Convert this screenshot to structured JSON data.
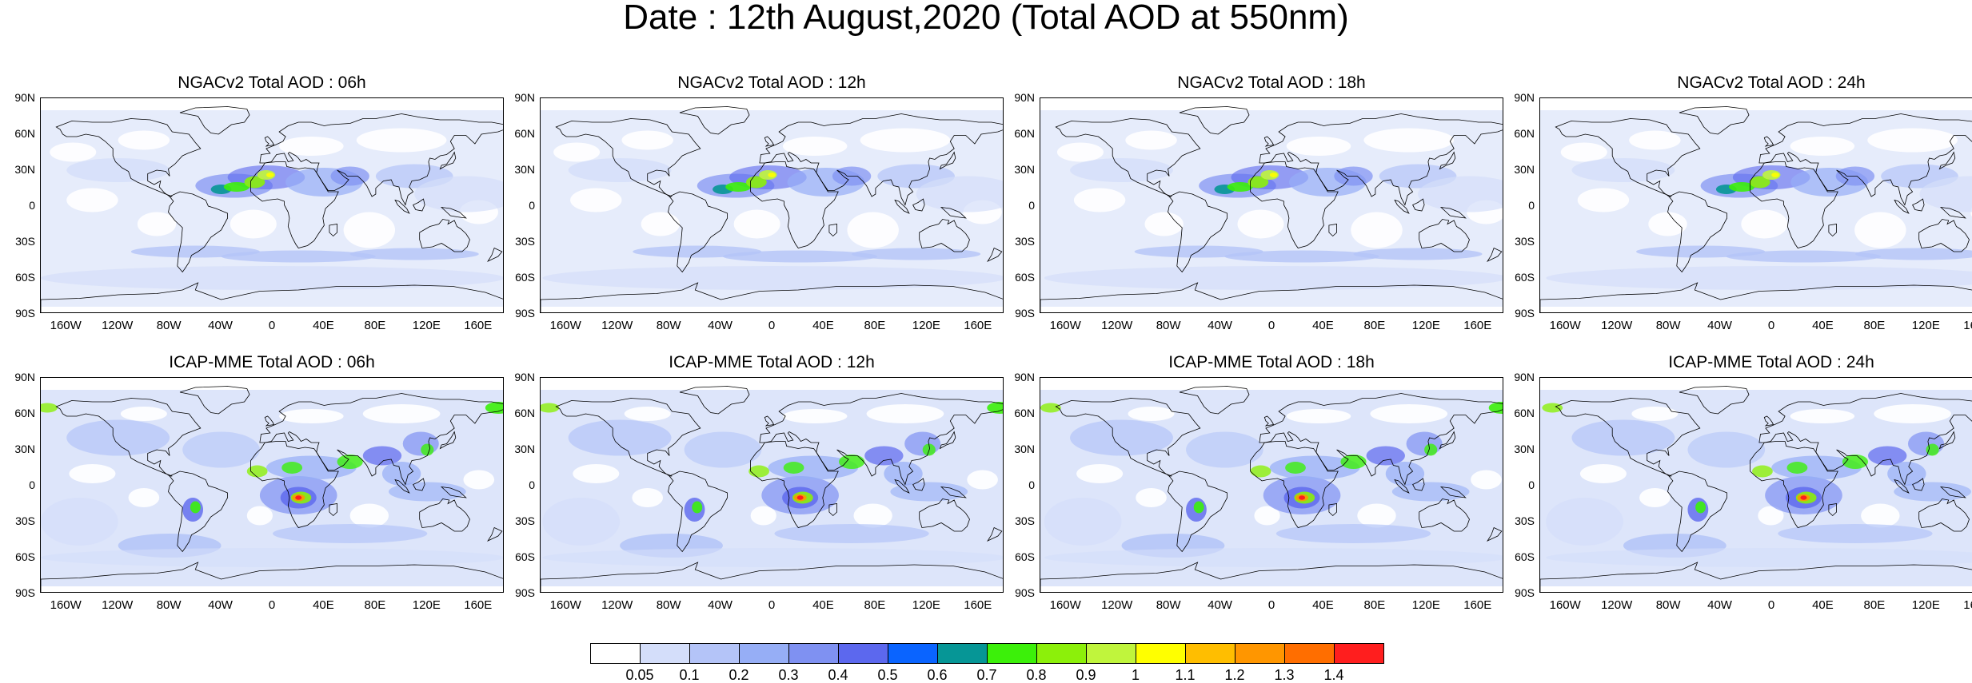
{
  "title": "Date : 12th August,2020 (Total AOD at 550nm)",
  "rows": [
    {
      "model": "NGACv2",
      "panels": [
        {
          "title": "NGACv2 Total AOD : 06h"
        },
        {
          "title": "NGACv2 Total AOD : 12h"
        },
        {
          "title": "NGACv2 Total AOD : 18h"
        },
        {
          "title": "NGACv2 Total AOD : 24h"
        }
      ]
    },
    {
      "model": "ICAP-MME",
      "panels": [
        {
          "title": "ICAP-MME Total AOD : 06h"
        },
        {
          "title": "ICAP-MME Total AOD : 12h"
        },
        {
          "title": "ICAP-MME Total AOD : 18h"
        },
        {
          "title": "ICAP-MME Total AOD : 24h"
        }
      ]
    }
  ],
  "lat_labels": [
    "90N",
    "60N",
    "30N",
    "0",
    "30S",
    "60S",
    "90S"
  ],
  "lon_labels": [
    "160W",
    "120W",
    "80W",
    "40W",
    "0",
    "40E",
    "80E",
    "120E",
    "160E"
  ],
  "colorbar": {
    "labels": [
      "0.05",
      "0.1",
      "0.2",
      "0.3",
      "0.4",
      "0.5",
      "0.6",
      "0.7",
      "0.8",
      "0.9",
      "1",
      "1.1",
      "1.2",
      "1.3",
      "1.4"
    ],
    "colors": [
      "#ffffff",
      "#d4defa",
      "#b4c4f8",
      "#96aef6",
      "#7f91f2",
      "#5c68ee",
      "#0a64ff",
      "#069696",
      "#3cf00a",
      "#8cf00a",
      "#c0f53c",
      "#ffff00",
      "#ffbe00",
      "#ff9600",
      "#ff6e00",
      "#ff1e1e"
    ]
  }
}
